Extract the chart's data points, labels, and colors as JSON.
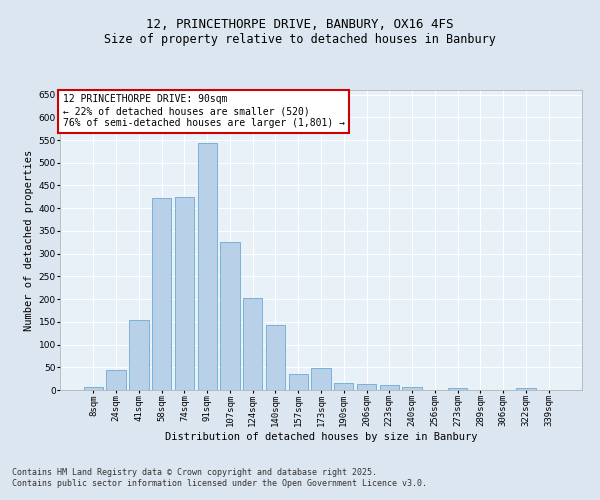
{
  "title": "12, PRINCETHORPE DRIVE, BANBURY, OX16 4FS",
  "subtitle": "Size of property relative to detached houses in Banbury",
  "xlabel": "Distribution of detached houses by size in Banbury",
  "ylabel": "Number of detached properties",
  "categories": [
    "8sqm",
    "24sqm",
    "41sqm",
    "58sqm",
    "74sqm",
    "91sqm",
    "107sqm",
    "124sqm",
    "140sqm",
    "157sqm",
    "173sqm",
    "190sqm",
    "206sqm",
    "223sqm",
    "240sqm",
    "256sqm",
    "273sqm",
    "289sqm",
    "306sqm",
    "322sqm",
    "339sqm"
  ],
  "values": [
    7,
    44,
    153,
    422,
    425,
    543,
    325,
    203,
    143,
    35,
    49,
    15,
    13,
    11,
    7,
    0,
    4,
    0,
    0,
    4,
    0
  ],
  "bar_color": "#b8d0e8",
  "bar_edge_color": "#6aaad4",
  "annotation_title": "12 PRINCETHORPE DRIVE: 90sqm",
  "annotation_line1": "← 22% of detached houses are smaller (520)",
  "annotation_line2": "76% of semi-detached houses are larger (1,801) →",
  "annotation_box_color": "#ffffff",
  "annotation_border_color": "#cc0000",
  "ylim": [
    0,
    660
  ],
  "yticks": [
    0,
    50,
    100,
    150,
    200,
    250,
    300,
    350,
    400,
    450,
    500,
    550,
    600,
    650
  ],
  "bg_color": "#dce6f0",
  "plot_bg_color": "#e8f0f8",
  "grid_color": "#ffffff",
  "footer_line1": "Contains HM Land Registry data © Crown copyright and database right 2025.",
  "footer_line2": "Contains public sector information licensed under the Open Government Licence v3.0.",
  "title_fontsize": 9,
  "subtitle_fontsize": 8.5,
  "axis_label_fontsize": 7.5,
  "tick_fontsize": 6.5,
  "annotation_fontsize": 7,
  "footer_fontsize": 6
}
